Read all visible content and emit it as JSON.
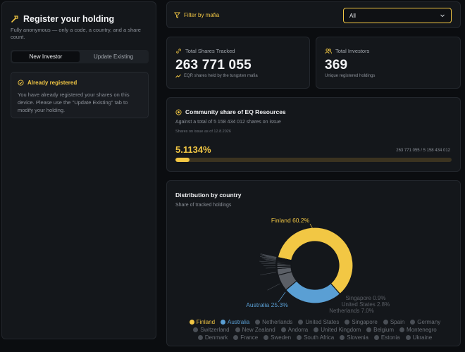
{
  "register": {
    "title": "Register your holding",
    "subtitle": "Fully anonymous — only a code, a country, and a share count.",
    "tabs": [
      "New Investor",
      "Update Existing"
    ],
    "notice": {
      "title": "Already registered",
      "body": "You have already registered your shares on this device. Please use the \"Update Existing\" tab to modify your holding."
    }
  },
  "filter": {
    "label": "Filter by mafia",
    "selected": "All"
  },
  "stats": {
    "shares": {
      "label": "Total Shares Tracked",
      "value": "263 771 055",
      "sub": "EQR shares held by the tungsten mafia"
    },
    "investors": {
      "label": "Total Investors",
      "value": "369",
      "sub": "Unique registered holdings"
    }
  },
  "community": {
    "title": "Community share of EQ Resources",
    "subtitle": "Against a total of 5 158 434 012 shares on issue",
    "date_note": "Shares on issue as of 12.8.2026",
    "percent": "5.1134%",
    "ratio": "263 771 055 / 5 158 434 012",
    "fraction": 0.051134
  },
  "distribution": {
    "title": "Distribution by country",
    "subtitle": "Share of tracked holdings",
    "legend": [
      "Finland",
      "Australia",
      "Netherlands",
      "United States",
      "Singapore",
      "Spain",
      "Germany",
      "Switzerland",
      "New Zealand",
      "Andorra",
      "United Kingdom",
      "Belgium",
      "Montenegro",
      "Denmark",
      "France",
      "Sweden",
      "South Africa",
      "Slovenia",
      "Estonia",
      "Ukraine"
    ],
    "labels": {
      "finland": "Finland 60.2%",
      "australia": "Australia 25.3%",
      "netherlands": "Netherlands 7.0%",
      "united_states": "United States 2.8%",
      "singapore": "Singapore 0.9%"
    }
  },
  "chart_data": {
    "type": "pie",
    "title": "Distribution by country",
    "subtitle": "Share of tracked holdings",
    "categories": [
      "Finland",
      "Australia",
      "Netherlands",
      "United States",
      "Singapore",
      "Spain",
      "Germany",
      "Switzerland",
      "New Zealand",
      "Andorra",
      "United Kingdom",
      "Belgium",
      "Montenegro",
      "Denmark",
      "France",
      "Sweden",
      "South Africa",
      "Slovenia",
      "Estonia",
      "Ukraine"
    ],
    "values": [
      60.2,
      25.3,
      7.0,
      2.8,
      0.9,
      0.8,
      0.6,
      0.5,
      0.4,
      0.3,
      0.3,
      0.2,
      0.2,
      0.1,
      0.1,
      0.1,
      0.1,
      0.05,
      0.03,
      0.02
    ],
    "colors": [
      "#f2c744",
      "#5a9fd4",
      "#5b5f66",
      "#5b5f66",
      "#5b5f66",
      "#5b5f66",
      "#5b5f66",
      "#5b5f66",
      "#5b5f66",
      "#5b5f66",
      "#5b5f66",
      "#5b5f66",
      "#5b5f66",
      "#5b5f66",
      "#5b5f66",
      "#5b5f66",
      "#5b5f66",
      "#5b5f66",
      "#5b5f66",
      "#5b5f66"
    ],
    "donut": true,
    "legend_position": "bottom"
  },
  "colors": {
    "accent": "#f2c744",
    "australia": "#5a9fd4",
    "background": "#0b0d10",
    "card": "#14171b"
  },
  "icons": {
    "register": "hammer-icon",
    "filter": "filter-icon",
    "shares": "link-icon",
    "investors": "users-icon",
    "trend": "trending-up-icon",
    "community": "target-icon",
    "notice": "check-circle-icon"
  }
}
